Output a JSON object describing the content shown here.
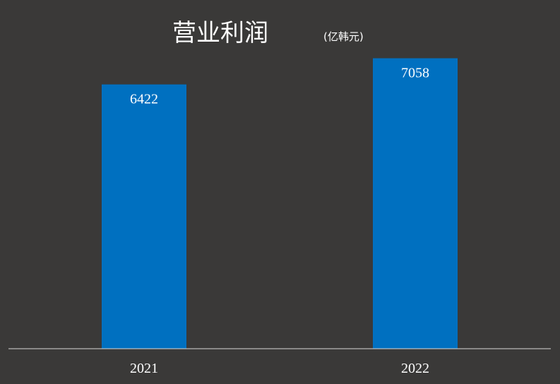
{
  "chart_data": {
    "type": "bar",
    "title": "营业利润",
    "subtitle": "(亿韩元)",
    "categories": [
      "2021",
      "2022"
    ],
    "values": [
      6422,
      7058
    ],
    "xlabel": "",
    "ylabel": "",
    "grid": false,
    "legend": "none"
  },
  "colors": {
    "background": "#3a3938",
    "bar": "#0070c0",
    "text": "#ffffff",
    "axis": "#d9d9d9"
  }
}
